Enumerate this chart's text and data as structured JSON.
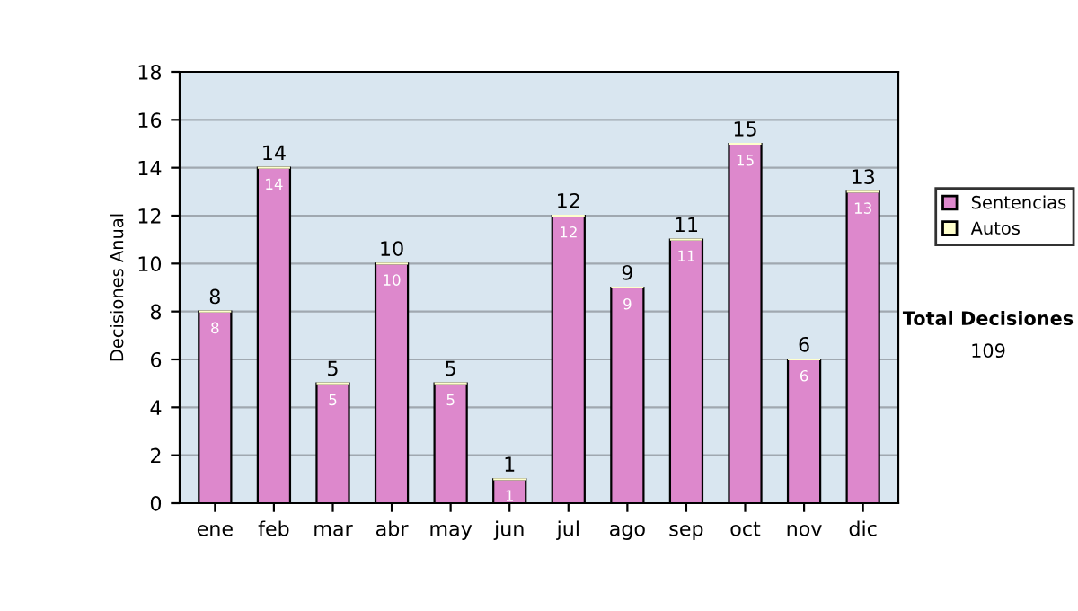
{
  "chart_data": {
    "type": "bar",
    "ylabel": "Decisiones Anual",
    "categories": [
      "ene",
      "feb",
      "mar",
      "abr",
      "may",
      "jun",
      "jul",
      "ago",
      "sep",
      "oct",
      "nov",
      "dic"
    ],
    "stacked": true,
    "series": [
      {
        "name": "Sentencias",
        "color": "#dd88cc",
        "values": [
          8,
          14,
          5,
          10,
          5,
          1,
          12,
          9,
          11,
          15,
          6,
          13
        ],
        "value_labels": [
          "8",
          "14",
          "5",
          "10",
          "5",
          "1",
          "12",
          "9",
          "11",
          "15",
          "6",
          "13"
        ]
      },
      {
        "name": "Autos",
        "color": "#ffffcc",
        "values": [
          0,
          0,
          0,
          0,
          0,
          0,
          0,
          0,
          0,
          0,
          0,
          0
        ]
      }
    ],
    "totals": [
      "8",
      "14",
      "5",
      "10",
      "5",
      "1",
      "12",
      "9",
      "11",
      "15",
      "6",
      "13"
    ],
    "ylim": [
      0,
      18
    ],
    "yticks": [
      0,
      2,
      4,
      6,
      8,
      10,
      12,
      14,
      16,
      18
    ],
    "grid": "y",
    "legend": "right",
    "annotations": [
      "Total Decisiones",
      "109"
    ]
  }
}
